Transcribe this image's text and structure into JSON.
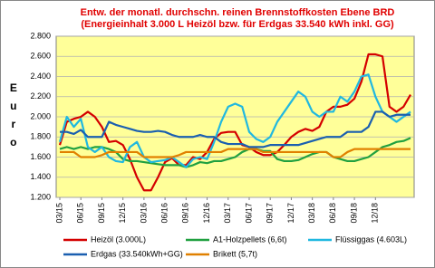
{
  "chart_data": {
    "type": "line",
    "title": [
      "Entw. der monatl. durchschn. reinen Brennstoffkosten Ebene BRD",
      "(Energieinhalt 3.000 L Heizöl bzw. für Erdgas 33.540 kWh inkl. GG)"
    ],
    "y_label": "Euro",
    "categories": [
      "03/15",
      null,
      null,
      "06/15",
      null,
      null,
      "09/15",
      null,
      null,
      "12/15",
      null,
      null,
      "03/16",
      null,
      null,
      "06/16",
      null,
      null,
      "09/16",
      null,
      null,
      "12/16",
      null,
      null,
      "03/17",
      null,
      null,
      "06/17",
      null,
      null,
      "09/17",
      null,
      null,
      "12/17",
      null,
      null,
      "03/18",
      null,
      null,
      "06/18",
      null,
      null,
      "09/18",
      null,
      null,
      "12/18",
      null,
      null,
      null,
      null,
      null
    ],
    "ylim": [
      1200,
      2800
    ],
    "yticks": [
      {
        "value": 1200,
        "label": "1.200"
      },
      {
        "value": 1400,
        "label": "1.400"
      },
      {
        "value": 1600,
        "label": "1.600"
      },
      {
        "value": 1800,
        "label": "1.800"
      },
      {
        "value": 2000,
        "label": "2.000"
      },
      {
        "value": 2200,
        "label": "2.200"
      },
      {
        "value": 2400,
        "label": "2.400"
      },
      {
        "value": 2600,
        "label": "2.600"
      },
      {
        "value": 2800,
        "label": "2.800"
      }
    ],
    "grid": true,
    "plot_background": "#ffff99",
    "series": [
      {
        "name": "Heizöl (3.000L)",
        "color": "#d40000",
        "values": [
          1720,
          1950,
          1980,
          2000,
          2050,
          2000,
          1900,
          1750,
          1760,
          1720,
          1580,
          1400,
          1270,
          1270,
          1400,
          1550,
          1590,
          1520,
          1520,
          1600,
          1580,
          1650,
          1780,
          1840,
          1850,
          1850,
          1720,
          1700,
          1650,
          1620,
          1620,
          1650,
          1720,
          1800,
          1850,
          1880,
          1860,
          1900,
          2050,
          2100,
          2100,
          2120,
          2180,
          2350,
          2620,
          2620,
          2600,
          2100,
          2050,
          2100,
          2220
        ]
      },
      {
        "name": "A1-Holzpellets (6,6t)",
        "color": "#20a040",
        "values": [
          1680,
          1700,
          1680,
          1700,
          1680,
          1700,
          1700,
          1680,
          1650,
          1580,
          1560,
          1560,
          1550,
          1540,
          1530,
          1520,
          1520,
          1520,
          1500,
          1520,
          1550,
          1540,
          1560,
          1560,
          1580,
          1600,
          1650,
          1680,
          1680,
          1660,
          1660,
          1580,
          1560,
          1560,
          1570,
          1600,
          1630,
          1650,
          1650,
          1600,
          1580,
          1560,
          1560,
          1580,
          1600,
          1650,
          1700,
          1720,
          1750,
          1760,
          1790
        ]
      },
      {
        "name": "Flüssiggas (4.603L)",
        "color": "#20b8e0",
        "values": [
          1750,
          2000,
          1900,
          1980,
          1700,
          1650,
          1700,
          1600,
          1560,
          1550,
          1700,
          1750,
          1600,
          1550,
          1560,
          1570,
          1600,
          1550,
          1500,
          1580,
          1600,
          1580,
          1750,
          1950,
          2100,
          2130,
          2100,
          1850,
          1780,
          1750,
          1800,
          1950,
          2050,
          2150,
          2250,
          2200,
          2050,
          2000,
          2050,
          2050,
          2200,
          2150,
          2250,
          2400,
          2420,
          2200,
          2050,
          2000,
          1950,
          2000,
          2050
        ]
      },
      {
        "name": "Erdgas (33.540kWh+GG)",
        "color": "#1a5fb0",
        "values": [
          1850,
          1850,
          1830,
          1870,
          1800,
          1800,
          1800,
          1950,
          1920,
          1900,
          1880,
          1860,
          1850,
          1850,
          1860,
          1850,
          1820,
          1800,
          1800,
          1800,
          1820,
          1800,
          1800,
          1750,
          1730,
          1730,
          1730,
          1700,
          1700,
          1700,
          1720,
          1720,
          1720,
          1720,
          1720,
          1740,
          1760,
          1780,
          1800,
          1800,
          1800,
          1850,
          1850,
          1850,
          1900,
          2050,
          2050,
          2000,
          2020,
          2020,
          2020
        ]
      },
      {
        "name": "Brikett (5,7t)",
        "color": "#e08000",
        "values": [
          1650,
          1650,
          1650,
          1600,
          1600,
          1600,
          1620,
          1650,
          1650,
          1650,
          1650,
          1650,
          1600,
          1600,
          1600,
          1600,
          1600,
          1620,
          1650,
          1650,
          1650,
          1650,
          1650,
          1650,
          1680,
          1680,
          1680,
          1680,
          1680,
          1650,
          1650,
          1650,
          1650,
          1650,
          1650,
          1650,
          1650,
          1650,
          1650,
          1600,
          1600,
          1650,
          1680,
          1680,
          1680,
          1680,
          1680,
          1680,
          1680,
          1680,
          1680
        ]
      }
    ]
  }
}
